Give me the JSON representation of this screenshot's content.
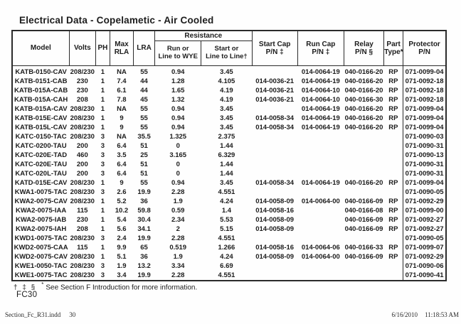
{
  "title": "Electrical Data - Copelametic - Air Cooled",
  "table": {
    "headers": {
      "model": "Model",
      "volts": "Volts",
      "ph": "PH",
      "max_rla": "Max\nRLA",
      "lra": "LRA",
      "resistance_group": "Resistance",
      "run_or_line_to_wye": "Run or\nLine to WYE",
      "start_or_line_to_line": "Start or\nLine to Line†",
      "start_cap_pn": "Start Cap\nP/N ‡",
      "run_cap_pn": "Run Cap\nP/N ‡",
      "relay_pn": "Relay\nP/N §",
      "part_type": "Part\nType*",
      "protector_pn": "Protector\nP/N"
    },
    "column_keys": [
      "model",
      "volts",
      "ph",
      "max-rla",
      "lra",
      "run-resistance",
      "start-resistance",
      "start-cap-pn",
      "run-cap-pn",
      "relay-pn",
      "part-type",
      "protector-pn"
    ],
    "rows": [
      [
        "KATB-0150-CAV",
        "208/230",
        "1",
        "NA",
        "55",
        "0.94",
        "3.45",
        "",
        "014-0064-19",
        "040-0166-20",
        "RP",
        "071-0099-04"
      ],
      [
        "KATB-0151-CAB",
        "230",
        "1",
        "7.4",
        "44",
        "1.28",
        "4.105",
        "014-0036-21",
        "014-0064-19",
        "040-0166-20",
        "RP",
        "071-0092-18"
      ],
      [
        "KATB-015A-CAB",
        "230",
        "1",
        "6.1",
        "44",
        "1.65",
        "4.19",
        "014-0036-21",
        "014-0064-10",
        "040-0166-20",
        "RP",
        "071-0092-18"
      ],
      [
        "KATB-015A-CAH",
        "208",
        "1",
        "7.8",
        "45",
        "1.32",
        "4.19",
        "014-0036-21",
        "014-0064-10",
        "040-0166-30",
        "RP",
        "071-0092-18"
      ],
      [
        "KATB-015A-CAV",
        "208/230",
        "1",
        "NA",
        "55",
        "0.94",
        "3.45",
        "",
        "014-0064-19",
        "040-0166-20",
        "RP",
        "071-0099-04"
      ],
      [
        "KATB-015E-CAV",
        "208/230",
        "1",
        "9",
        "55",
        "0.94",
        "3.45",
        "014-0058-34",
        "014-0064-19",
        "040-0166-20",
        "RP",
        "071-0099-04"
      ],
      [
        "KATB-015L-CAV",
        "208/230",
        "1",
        "9",
        "55",
        "0.94",
        "3.45",
        "014-0058-34",
        "014-0064-19",
        "040-0166-20",
        "RP",
        "071-0099-04"
      ],
      [
        "KATC-0150-TAC",
        "208/230",
        "3",
        "NA",
        "35.5",
        "1.325",
        "2.375",
        "",
        "",
        "",
        "",
        "071-0090-03"
      ],
      [
        "KATC-0200-TAU",
        "200",
        "3",
        "6.4",
        "51",
        "0",
        "1.44",
        "",
        "",
        "",
        "",
        "071-0090-31"
      ],
      [
        "KATC-020E-TAD",
        "460",
        "3",
        "3.5",
        "25",
        "3.165",
        "6.329",
        "",
        "",
        "",
        "",
        "071-0090-13"
      ],
      [
        "KATC-020E-TAU",
        "200",
        "3",
        "6.4",
        "51",
        "0",
        "1.44",
        "",
        "",
        "",
        "",
        "071-0090-31"
      ],
      [
        "KATC-020L-TAU",
        "200",
        "3",
        "6.4",
        "51",
        "0",
        "1.44",
        "",
        "",
        "",
        "",
        "071-0090-31"
      ],
      [
        "KATD-015E-CAV",
        "208/230",
        "1",
        "9",
        "55",
        "0.94",
        "3.45",
        "014-0058-34",
        "014-0064-19",
        "040-0166-20",
        "RP",
        "071-0099-04"
      ],
      [
        "KWA1-0075-TAC",
        "208/230",
        "3",
        "2.6",
        "19.9",
        "2.28",
        "4.551",
        "",
        "",
        "",
        "",
        "071-0090-05"
      ],
      [
        "KWA2-0075-CAV",
        "208/230",
        "1",
        "5.2",
        "36",
        "1.9",
        "4.24",
        "014-0058-09",
        "014-0064-00",
        "040-0166-09",
        "RP",
        "071-0092-29"
      ],
      [
        "KWA2-0075-IAA",
        "115",
        "1",
        "10.2",
        "59.8",
        "0.59",
        "1.4",
        "014-0058-16",
        "",
        "040-0166-08",
        "RP",
        "071-0099-00"
      ],
      [
        "KWA2-0075-IAB",
        "230",
        "1",
        "5.4",
        "30.4",
        "2.34",
        "5.53",
        "014-0058-09",
        "",
        "040-0166-09",
        "RP",
        "071-0092-27"
      ],
      [
        "KWA2-0075-IAH",
        "208",
        "1",
        "5.6",
        "34.1",
        "2",
        "5.15",
        "014-0058-09",
        "",
        "040-0166-09",
        "RP",
        "071-0092-27"
      ],
      [
        "KWD1-0075-TAC",
        "208/230",
        "3",
        "2.4",
        "19.9",
        "2.28",
        "4.551",
        "",
        "",
        "",
        "",
        "071-0090-05"
      ],
      [
        "KWD2-0075-CAA",
        "115",
        "1",
        "9.9",
        "65",
        "0.519",
        "1.266",
        "014-0058-16",
        "014-0064-06",
        "040-0166-33",
        "RP",
        "071-0099-07"
      ],
      [
        "KWD2-0075-CAV",
        "208/230",
        "1",
        "5.1",
        "36",
        "1.9",
        "4.24",
        "014-0058-09",
        "014-0064-00",
        "040-0166-09",
        "RP",
        "071-0092-29"
      ],
      [
        "KWE1-0050-TAC",
        "208/230",
        "3",
        "1.9",
        "13.2",
        "3.34",
        "6.69",
        "",
        "",
        "",
        "",
        "071-0090-06"
      ],
      [
        "KWE1-0075-TAC",
        "208/230",
        "3",
        "3.4",
        "19.9",
        "2.28",
        "4.551",
        "",
        "",
        "",
        "",
        "071-0090-41"
      ]
    ]
  },
  "footnote": {
    "symbols": "† ‡ §",
    "star": "*",
    "text": "See Section F Introduction for more information."
  },
  "page_code": "FC30",
  "print_footer": {
    "file_name": "Section_Fc_R31.indd",
    "page_number": "30",
    "date": "6/16/2010",
    "time": "11:18:53 AM"
  }
}
